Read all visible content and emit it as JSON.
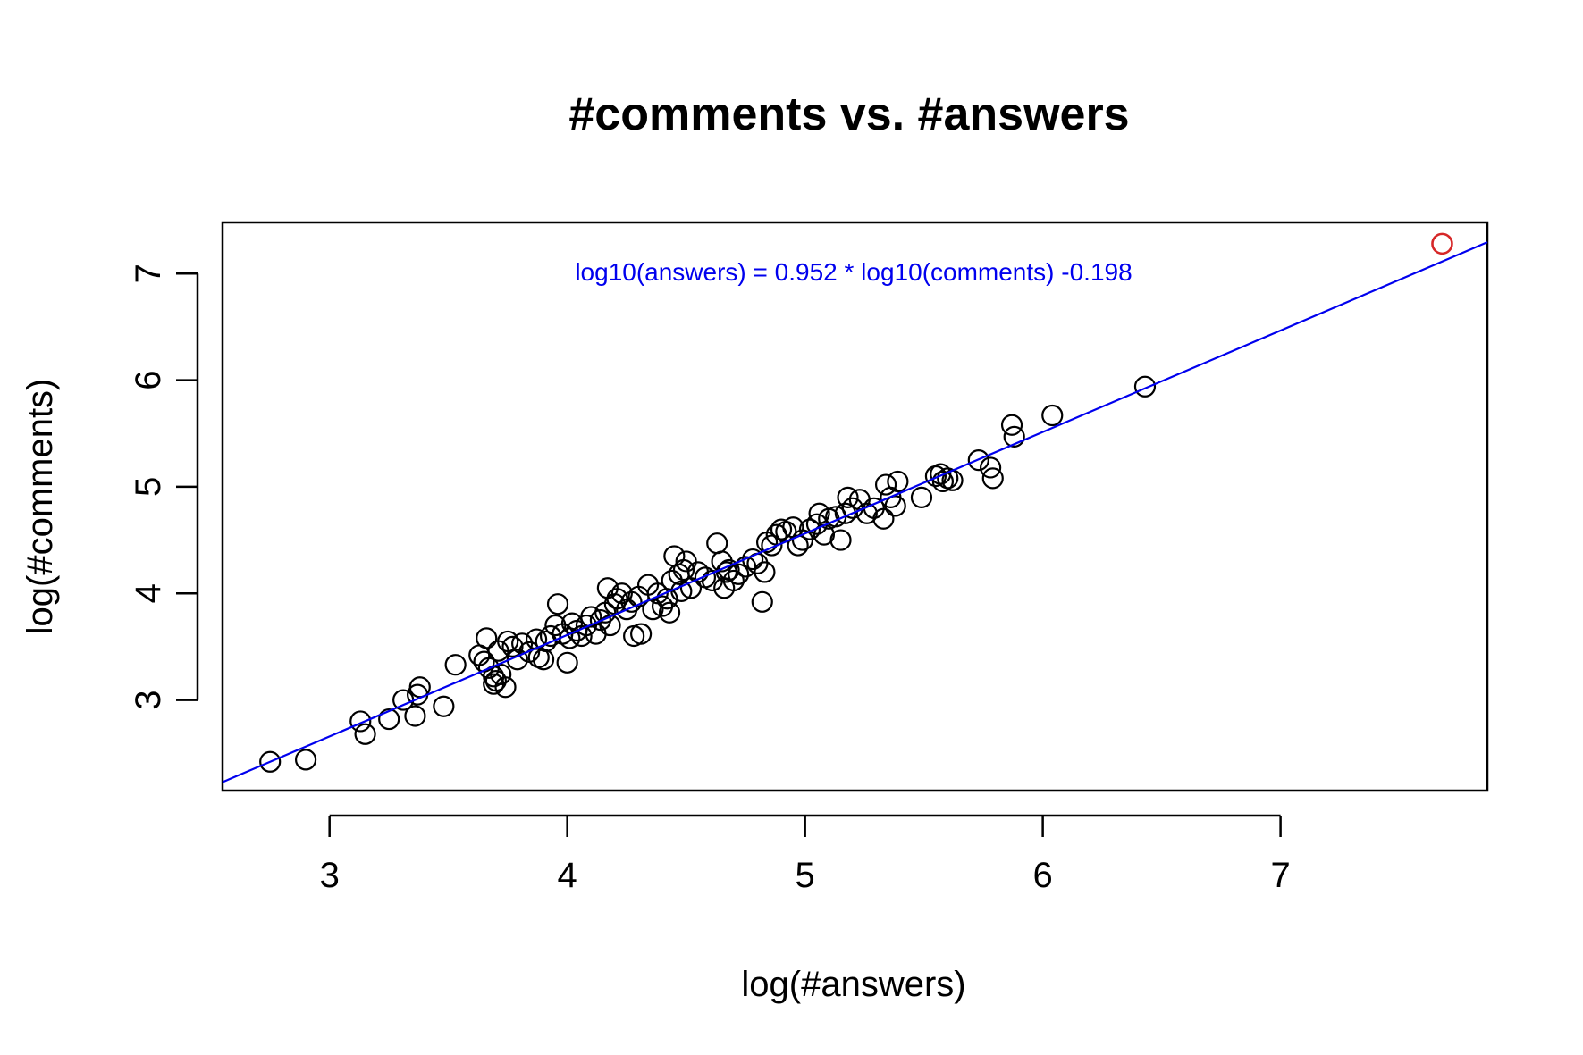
{
  "chart_data": {
    "type": "scatter",
    "title": "#comments vs. #answers",
    "xlabel": "log(#answers)",
    "ylabel": "log(#comments)",
    "xlim": [
      2.55,
      7.87
    ],
    "ylim": [
      2.15,
      7.48
    ],
    "xticks": [
      3,
      4,
      5,
      6,
      7
    ],
    "yticks": [
      3,
      4,
      5,
      6,
      7
    ],
    "grid": false,
    "point_color": "#000000",
    "highlight_color": "#d62728",
    "fit_color": "#0000ee",
    "fit_line": {
      "slope": 0.952,
      "intercept": -0.198
    },
    "annotation": "log10(answers) = 0.952 * log10(comments) -0.198",
    "highlight_points": [
      {
        "x": 7.68,
        "y": 7.28
      }
    ],
    "points": [
      [
        2.75,
        2.42
      ],
      [
        2.9,
        2.44
      ],
      [
        3.13,
        2.8
      ],
      [
        3.15,
        2.68
      ],
      [
        3.25,
        2.82
      ],
      [
        3.31,
        3.0
      ],
      [
        3.36,
        2.85
      ],
      [
        3.37,
        3.05
      ],
      [
        3.38,
        3.12
      ],
      [
        3.48,
        2.94
      ],
      [
        3.53,
        3.33
      ],
      [
        3.63,
        3.42
      ],
      [
        3.65,
        3.36
      ],
      [
        3.66,
        3.58
      ],
      [
        3.67,
        3.3
      ],
      [
        3.69,
        3.22
      ],
      [
        3.69,
        3.15
      ],
      [
        3.7,
        3.18
      ],
      [
        3.71,
        3.46
      ],
      [
        3.72,
        3.24
      ],
      [
        3.74,
        3.12
      ],
      [
        3.75,
        3.55
      ],
      [
        3.77,
        3.5
      ],
      [
        3.79,
        3.38
      ],
      [
        3.81,
        3.53
      ],
      [
        3.84,
        3.45
      ],
      [
        3.87,
        3.57
      ],
      [
        3.88,
        3.4
      ],
      [
        3.9,
        3.38
      ],
      [
        3.91,
        3.55
      ],
      [
        3.93,
        3.6
      ],
      [
        3.95,
        3.7
      ],
      [
        3.96,
        3.9
      ],
      [
        3.98,
        3.62
      ],
      [
        4.0,
        3.35
      ],
      [
        4.01,
        3.58
      ],
      [
        4.02,
        3.72
      ],
      [
        4.04,
        3.65
      ],
      [
        4.06,
        3.6
      ],
      [
        4.08,
        3.7
      ],
      [
        4.1,
        3.78
      ],
      [
        4.12,
        3.62
      ],
      [
        4.14,
        3.75
      ],
      [
        4.16,
        3.82
      ],
      [
        4.17,
        4.05
      ],
      [
        4.18,
        3.7
      ],
      [
        4.2,
        3.9
      ],
      [
        4.21,
        3.95
      ],
      [
        4.23,
        4.0
      ],
      [
        4.25,
        3.85
      ],
      [
        4.27,
        3.92
      ],
      [
        4.28,
        3.6
      ],
      [
        4.3,
        3.97
      ],
      [
        4.31,
        3.62
      ],
      [
        4.34,
        4.08
      ],
      [
        4.36,
        3.85
      ],
      [
        4.38,
        4.0
      ],
      [
        4.4,
        3.88
      ],
      [
        4.42,
        3.95
      ],
      [
        4.43,
        3.82
      ],
      [
        4.44,
        4.12
      ],
      [
        4.45,
        4.35
      ],
      [
        4.47,
        4.18
      ],
      [
        4.48,
        4.02
      ],
      [
        4.49,
        4.22
      ],
      [
        4.5,
        4.3
      ],
      [
        4.52,
        4.05
      ],
      [
        4.55,
        4.2
      ],
      [
        4.58,
        4.15
      ],
      [
        4.61,
        4.12
      ],
      [
        4.63,
        4.47
      ],
      [
        4.65,
        4.3
      ],
      [
        4.66,
        4.05
      ],
      [
        4.67,
        4.2
      ],
      [
        4.68,
        4.22
      ],
      [
        4.7,
        4.12
      ],
      [
        4.72,
        4.18
      ],
      [
        4.75,
        4.25
      ],
      [
        4.78,
        4.32
      ],
      [
        4.8,
        4.28
      ],
      [
        4.82,
        3.92
      ],
      [
        4.83,
        4.2
      ],
      [
        4.84,
        4.48
      ],
      [
        4.86,
        4.45
      ],
      [
        4.88,
        4.55
      ],
      [
        4.9,
        4.6
      ],
      [
        4.92,
        4.58
      ],
      [
        4.95,
        4.62
      ],
      [
        4.97,
        4.45
      ],
      [
        4.99,
        4.5
      ],
      [
        5.02,
        4.6
      ],
      [
        5.05,
        4.65
      ],
      [
        5.06,
        4.75
      ],
      [
        5.08,
        4.55
      ],
      [
        5.1,
        4.7
      ],
      [
        5.13,
        4.72
      ],
      [
        5.15,
        4.5
      ],
      [
        5.17,
        4.75
      ],
      [
        5.18,
        4.9
      ],
      [
        5.2,
        4.8
      ],
      [
        5.23,
        4.88
      ],
      [
        5.26,
        4.75
      ],
      [
        5.29,
        4.8
      ],
      [
        5.33,
        4.7
      ],
      [
        5.34,
        5.02
      ],
      [
        5.36,
        4.9
      ],
      [
        5.38,
        4.82
      ],
      [
        5.39,
        5.05
      ],
      [
        5.49,
        4.9
      ],
      [
        5.55,
        5.1
      ],
      [
        5.57,
        5.12
      ],
      [
        5.58,
        5.05
      ],
      [
        5.6,
        5.08
      ],
      [
        5.62,
        5.06
      ],
      [
        5.73,
        5.25
      ],
      [
        5.78,
        5.18
      ],
      [
        5.79,
        5.08
      ],
      [
        5.87,
        5.58
      ],
      [
        5.88,
        5.47
      ],
      [
        6.04,
        5.67
      ],
      [
        6.43,
        5.94
      ]
    ]
  }
}
